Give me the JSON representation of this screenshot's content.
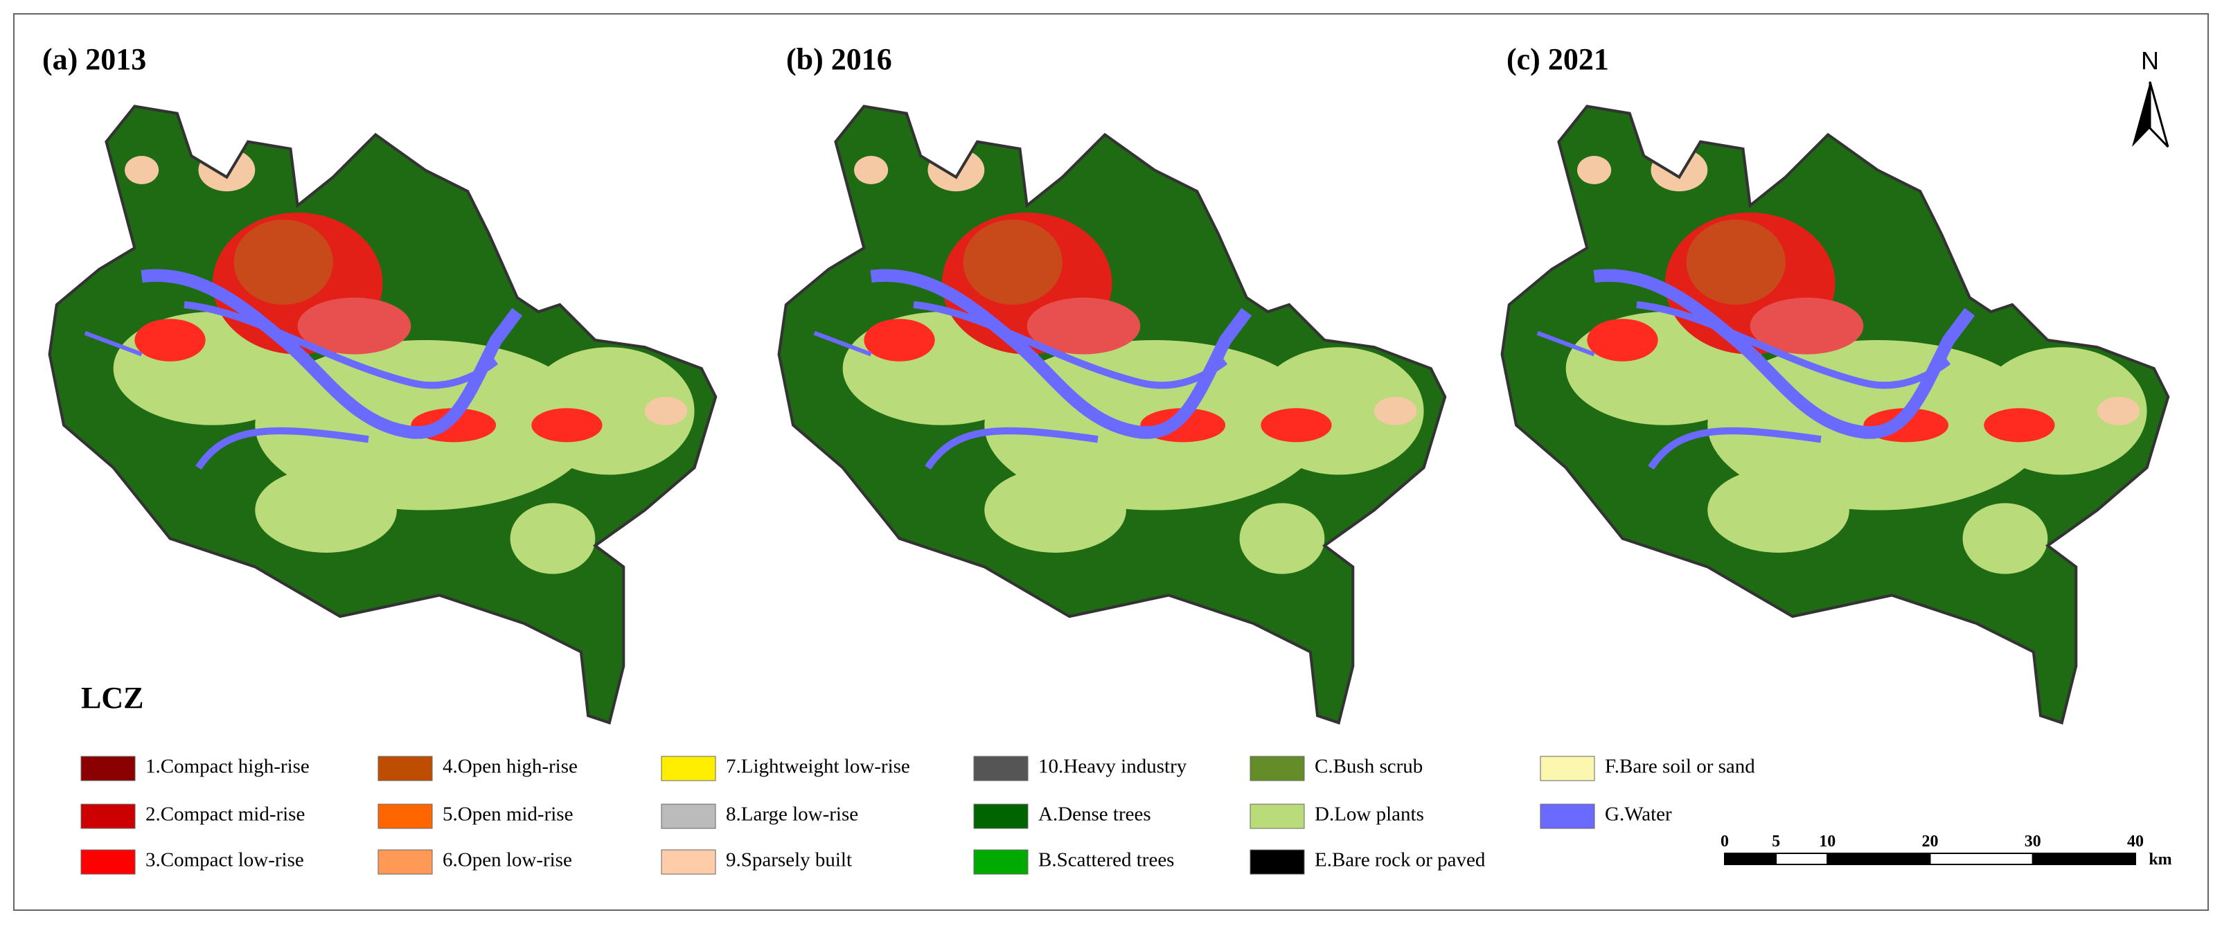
{
  "panels": [
    {
      "title": "(a) 2013"
    },
    {
      "title": "(b) 2016"
    },
    {
      "title": "(c) 2021"
    }
  ],
  "legend": {
    "title": "LCZ",
    "items": [
      {
        "label": "1.Compact high-rise",
        "color": "#8b0000"
      },
      {
        "label": "2.Compact mid-rise",
        "color": "#cc0000"
      },
      {
        "label": "3.Compact low-rise",
        "color": "#ff0000"
      },
      {
        "label": "4.Open high-rise",
        "color": "#bf4d00"
      },
      {
        "label": "5.Open mid-rise",
        "color": "#ff6600"
      },
      {
        "label": "6.Open low-rise",
        "color": "#ff9955"
      },
      {
        "label": "7.Lightweight low-rise",
        "color": "#ffee00"
      },
      {
        "label": "8.Large low-rise",
        "color": "#bbbbbb"
      },
      {
        "label": "9.Sparsely built",
        "color": "#ffccaa"
      },
      {
        "label": "10.Heavy industry",
        "color": "#555555"
      },
      {
        "label": "A.Dense trees",
        "color": "#006400"
      },
      {
        "label": "B.Scattered trees",
        "color": "#00aa00"
      },
      {
        "label": "C.Bush scrub",
        "color": "#648c28"
      },
      {
        "label": "D.Low plants",
        "color": "#b9db79"
      },
      {
        "label": "E.Bare rock or paved",
        "color": "#000000"
      },
      {
        "label": "F.Bare soil or sand",
        "color": "#fbf7ae"
      },
      {
        "label": "G.Water",
        "color": "#6a6aff"
      }
    ]
  },
  "north_arrow": "N",
  "scale_bar": {
    "ticks": [
      0,
      5,
      10,
      20,
      30,
      40
    ],
    "unit": "km"
  }
}
